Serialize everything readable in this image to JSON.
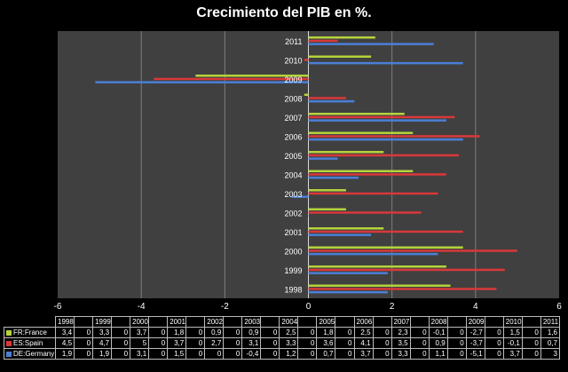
{
  "title": "Crecimiento del PIB en %.",
  "colors": {
    "background": "#000000",
    "plot_area": "#404040",
    "gridline": "#7f7f7f",
    "france": "#b5d33b",
    "spain": "#d9383a",
    "germany": "#4a7fd6"
  },
  "chart_data": {
    "type": "bar",
    "orientation": "horizontal",
    "title": "Crecimiento del PIB en %.",
    "categories": [
      "1998",
      "1999",
      "2000",
      "2001",
      "2002",
      "2003",
      "2004",
      "2005",
      "2006",
      "2007",
      "2008",
      "2009",
      "2010",
      "2011"
    ],
    "xlim": [
      -6,
      6
    ],
    "x_ticks": [
      "-6",
      "-4",
      "-2",
      "0",
      "2",
      "4",
      "6"
    ],
    "grid": true,
    "legend": "data-table",
    "series": [
      {
        "name": "FR:France",
        "label": "3,4|0|3,3|0|3,7|0|1,8|0|0,9|0|0,9|0|2,5|0|1,8|0|2,5|0|2,3|0|-0,1|0|-2,7|0|1,5|0|1,6",
        "values": [
          3.4,
          3.3,
          3.7,
          1.8,
          0.9,
          0.9,
          2.5,
          1.8,
          2.5,
          2.3,
          -0.1,
          -2.7,
          1.5,
          1.6
        ],
        "color": "#b5d33b"
      },
      {
        "name": "ES:Spain",
        "values": [
          4.5,
          4.7,
          5,
          3.7,
          2.7,
          3.1,
          3.3,
          3.6,
          4.1,
          3.5,
          0.9,
          -3.7,
          -0.1,
          0.7
        ],
        "color": "#d9383a"
      },
      {
        "name": "DE:Germany",
        "values": [
          1.9,
          1.9,
          3.1,
          1.5,
          0,
          -0.4,
          1.2,
          0.7,
          3.7,
          3.3,
          1.1,
          -5.1,
          3.7,
          3
        ],
        "color": "#4a7fd6"
      }
    ]
  },
  "table": {
    "header": [
      "1998",
      "1999",
      "2000",
      "2001",
      "2002",
      "2003",
      "2004",
      "2005",
      "2006",
      "2007",
      "2008",
      "2009",
      "2010",
      "2011"
    ],
    "rows": [
      {
        "label": "FR:France",
        "color": "#b5d33b",
        "cells": [
          "3,4",
          "0",
          "3,3",
          "0",
          "3,7",
          "0",
          "1,8",
          "0",
          "0,9",
          "0",
          "0,9",
          "0",
          "2,5",
          "0",
          "1,8",
          "0",
          "2,5",
          "0",
          "2,3",
          "0",
          "-0,1",
          "0",
          "-2,7",
          "0",
          "1,5",
          "0",
          "1,6"
        ]
      },
      {
        "label": "ES:Spain",
        "color": "#d9383a",
        "cells": [
          "4,5",
          "0",
          "4,7",
          "0",
          "5",
          "0",
          "3,7",
          "0",
          "2,7",
          "0",
          "3,1",
          "0",
          "3,3",
          "0",
          "3,6",
          "0",
          "4,1",
          "0",
          "3,5",
          "0",
          "0,9",
          "0",
          "-3,7",
          "0",
          "-0,1",
          "0",
          "0,7"
        ]
      },
      {
        "label": "DE:Germany",
        "color": "#4a7fd6",
        "cells": [
          "1,9",
          "0",
          "1,9",
          "0",
          "3,1",
          "0",
          "1,5",
          "0",
          "0",
          "0",
          "-0,4",
          "0",
          "1,2",
          "0",
          "0,7",
          "0",
          "3,7",
          "0",
          "3,3",
          "0",
          "1,1",
          "0",
          "-5,1",
          "0",
          "3,7",
          "0",
          "3"
        ]
      }
    ]
  }
}
